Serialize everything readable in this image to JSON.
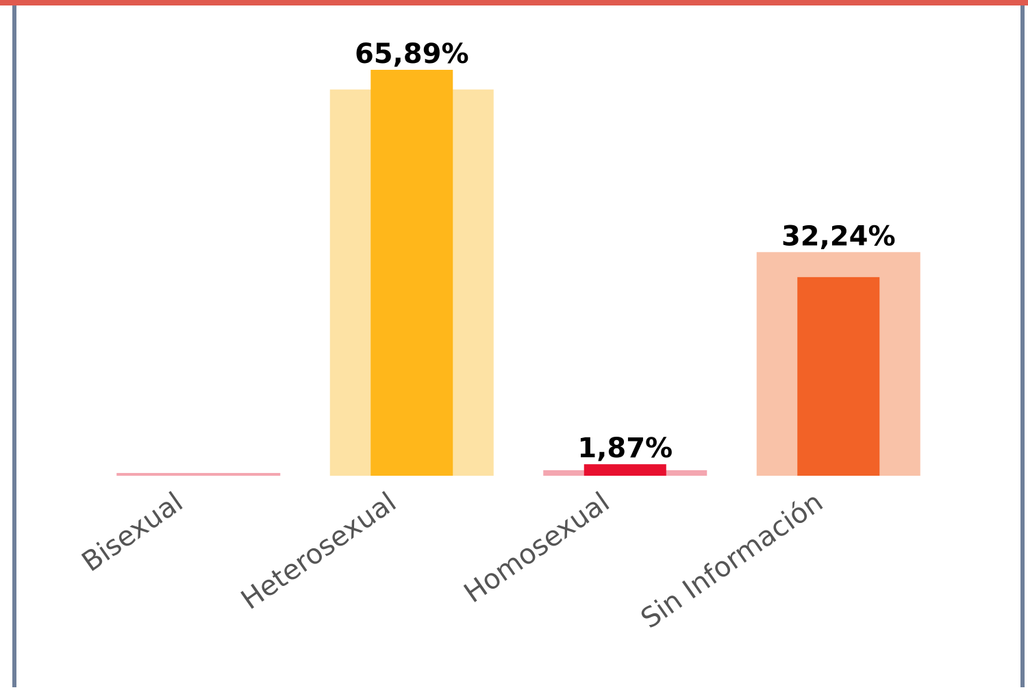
{
  "chart_data": {
    "type": "bar",
    "categories": [
      "Bisexual",
      "Heterosexual",
      "Homosexual",
      "Sin Información"
    ],
    "series": [
      {
        "colors": [
          "#f4a6b0",
          "#fde2a4",
          "#f4a6b0",
          "#f9c2a8"
        ],
        "values": [
          0.45,
          62.7,
          0.9,
          36.3
        ]
      },
      {
        "colors": [
          "#e8102f",
          "#ffb71b",
          "#e8102f",
          "#f26227"
        ],
        "values": [
          null,
          65.89,
          1.87,
          32.24
        ],
        "value_labels": [
          null,
          "65,89%",
          "1,87%",
          "32,24%"
        ]
      }
    ],
    "ylim": [
      0,
      75
    ]
  }
}
